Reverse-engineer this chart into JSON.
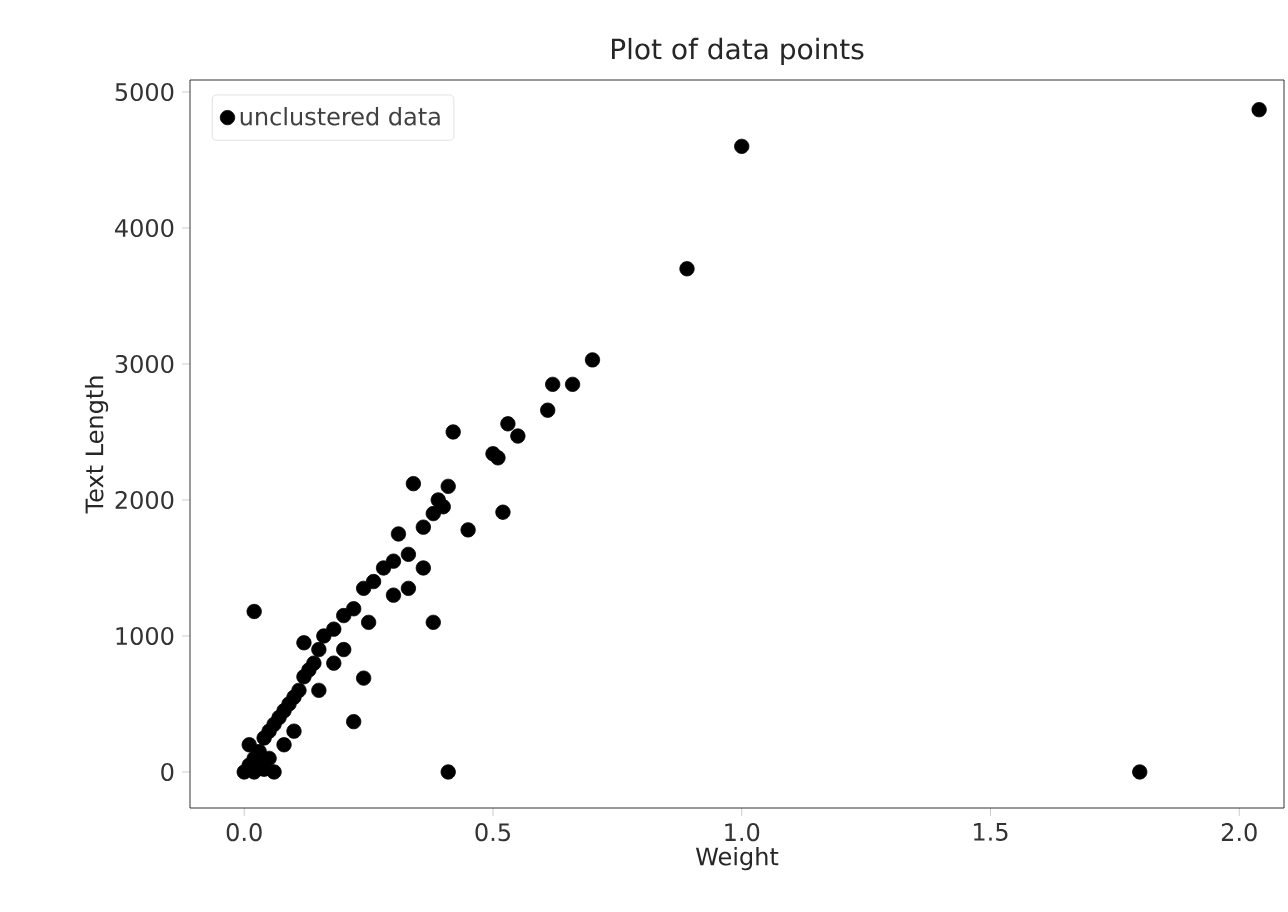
{
  "chart_data": {
    "type": "scatter",
    "title": "Plot of data points",
    "xlabel": "Weight",
    "ylabel": "Text Length",
    "xlim": [
      -0.109,
      2.09
    ],
    "ylim": [
      -265,
      5088
    ],
    "xticks": [
      {
        "value": 0,
        "label": "0.0"
      },
      0.5,
      {
        "value": 1,
        "label": "1.0"
      },
      1.5,
      {
        "value": 2,
        "label": "2.0"
      }
    ],
    "yticks": [
      0,
      1000,
      2000,
      3000,
      4000,
      5000
    ],
    "grid": false,
    "legend": "top left",
    "marker": "circle",
    "series": [
      {
        "name": "unclustered data",
        "color": "#000000",
        "x": [
          1.0,
          2.04,
          0.89,
          0.7,
          0.66,
          0.62,
          0.61,
          0.42,
          0.55,
          0.53,
          0.5,
          0.51,
          0.34,
          0.41,
          0.52,
          0.45,
          0.02,
          0.38,
          0.41,
          0.24,
          0.22,
          1.8,
          0,
          0.01,
          0.02,
          0.01,
          0.03,
          0.04,
          0.05,
          0.06,
          0.07,
          0.08,
          0.09,
          0.1,
          0.11,
          0.12,
          0.13,
          0.14,
          0.15,
          0.12,
          0.16,
          0.18,
          0.2,
          0.22,
          0.24,
          0.26,
          0.28,
          0.3,
          0.31,
          0.33,
          0.36,
          0.38,
          0.39,
          0.4,
          0.36,
          0.33,
          0.3,
          0.25,
          0.2,
          0.18,
          0.15,
          0.1,
          0.08,
          0.05,
          0.03,
          0.02,
          0.06,
          0.04
        ],
        "values": [
          4600,
          4870,
          3700,
          3030,
          2850,
          2850,
          2660,
          2500,
          2470,
          2560,
          2340,
          2310,
          2120,
          2100,
          1910,
          1780,
          1180,
          1100,
          0,
          690,
          370,
          0,
          0,
          50,
          100,
          200,
          150,
          250,
          300,
          350,
          400,
          450,
          500,
          550,
          600,
          700,
          750,
          800,
          900,
          950,
          1000,
          1050,
          1150,
          1200,
          1350,
          1400,
          1500,
          1550,
          1750,
          1600,
          1800,
          1900,
          2000,
          1950,
          1500,
          1350,
          1300,
          1100,
          900,
          800,
          600,
          300,
          200,
          100,
          50,
          0,
          0,
          20
        ]
      }
    ]
  }
}
